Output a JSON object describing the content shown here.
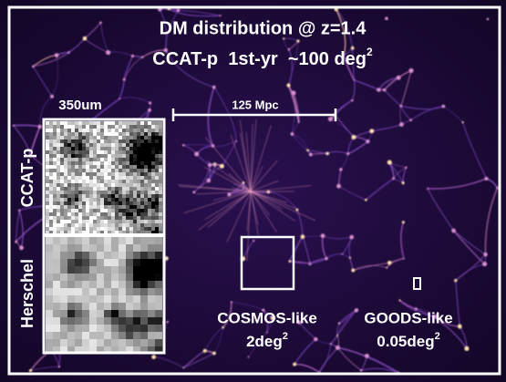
{
  "title": {
    "line1": "DM distribution @ z=1.4",
    "line2": "CCAT-p  1st-yr  ~100 deg",
    "line2_sup": "2"
  },
  "inset": {
    "resolution": "350um",
    "top_label": "CCAT-p",
    "bottom_label": "Herschel"
  },
  "scale_bar": "125 Mpc",
  "fields": [
    {
      "name": "COSMOS-like",
      "area": "2deg",
      "area_sup": "2"
    },
    {
      "name": "GOODS-like",
      "area": "0.05deg",
      "area_sup": "2"
    }
  ]
}
